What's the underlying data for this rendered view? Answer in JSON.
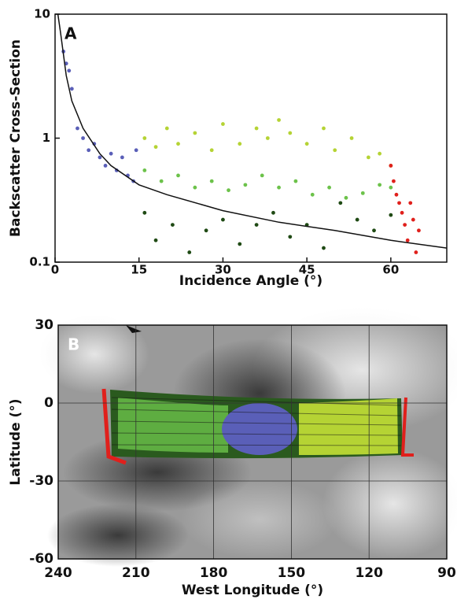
{
  "chart_data": [
    {
      "type": "scatter",
      "panel_label": "A",
      "xlabel": "Incidence Angle (°)",
      "ylabel": "Backscatter Cross-Section",
      "xlim": [
        0,
        70
      ],
      "xticks": [
        0,
        15,
        30,
        45,
        60
      ],
      "ylim": [
        0.1,
        10
      ],
      "yticks": [
        0.1,
        1,
        10
      ],
      "log_y": true,
      "grid": false,
      "series": [
        {
          "color": "#5a5fb8",
          "mode": "markers",
          "x": [
            1.5,
            2,
            2.5,
            3,
            4,
            5,
            6,
            7,
            8,
            9,
            10,
            11,
            12,
            13,
            14,
            14.5
          ],
          "values": [
            5,
            4,
            3.5,
            2.5,
            1.2,
            1.0,
            0.8,
            0.9,
            0.7,
            0.6,
            0.75,
            0.55,
            0.7,
            0.5,
            0.45,
            0.8
          ]
        },
        {
          "color": "#b5d334",
          "mode": "markers",
          "x": [
            16,
            18,
            20,
            22,
            25,
            28,
            30,
            33,
            36,
            38,
            40,
            42,
            45,
            48,
            50,
            53,
            56,
            58,
            60
          ],
          "values": [
            1.0,
            0.85,
            1.2,
            0.9,
            1.1,
            0.8,
            1.3,
            0.9,
            1.2,
            1.0,
            1.4,
            1.1,
            0.9,
            1.2,
            0.8,
            1.0,
            0.7,
            0.75,
            0.6
          ]
        },
        {
          "color": "#6cc24a",
          "mode": "markers",
          "x": [
            16,
            19,
            22,
            25,
            28,
            31,
            34,
            37,
            40,
            43,
            46,
            49,
            52,
            55,
            58,
            60
          ],
          "values": [
            0.55,
            0.45,
            0.5,
            0.4,
            0.45,
            0.38,
            0.42,
            0.5,
            0.4,
            0.45,
            0.35,
            0.4,
            0.33,
            0.36,
            0.42,
            0.4
          ]
        },
        {
          "color": "#1f4a14",
          "mode": "markers",
          "x": [
            16,
            18,
            21,
            24,
            27,
            30,
            33,
            36,
            39,
            42,
            45,
            48,
            51,
            54,
            57,
            60
          ],
          "values": [
            0.25,
            0.15,
            0.2,
            0.12,
            0.18,
            0.22,
            0.14,
            0.2,
            0.25,
            0.16,
            0.2,
            0.13,
            0.3,
            0.22,
            0.18,
            0.24
          ]
        },
        {
          "color": "#e0201c",
          "mode": "markers",
          "x": [
            60,
            60.5,
            61,
            61.5,
            62,
            62.5,
            63,
            63.5,
            64,
            64.5,
            65
          ],
          "values": [
            0.6,
            0.45,
            0.35,
            0.3,
            0.25,
            0.2,
            0.15,
            0.3,
            0.22,
            0.12,
            0.18
          ]
        },
        {
          "color": "#111111",
          "mode": "line",
          "x": [
            0.5,
            1,
            2,
            3,
            5,
            8,
            10,
            15,
            20,
            30,
            40,
            50,
            60,
            70
          ],
          "values": [
            10,
            7,
            3.2,
            2,
            1.2,
            0.75,
            0.6,
            0.42,
            0.35,
            0.26,
            0.21,
            0.18,
            0.15,
            0.13
          ]
        }
      ]
    },
    {
      "type": "map",
      "panel_label": "B",
      "xlabel": "West Longitude (°)",
      "ylabel": "Latitude (°)",
      "xlim": [
        240,
        90
      ],
      "xticks": [
        240,
        210,
        180,
        150,
        120,
        90
      ],
      "ylim": [
        -60,
        30
      ],
      "yticks": [
        -60,
        -30,
        0,
        30
      ],
      "grid": true
    }
  ]
}
